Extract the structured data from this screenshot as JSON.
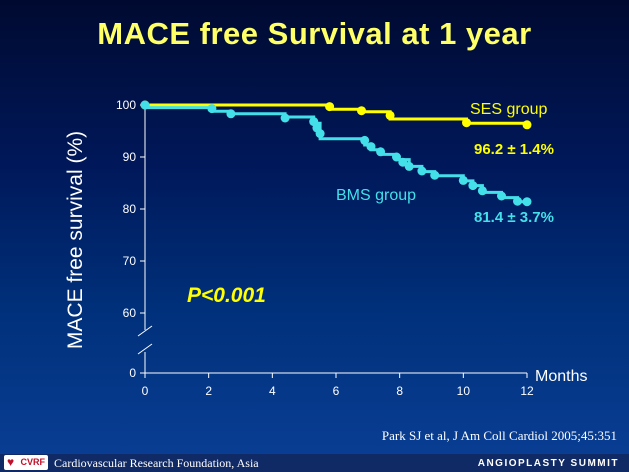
{
  "slide": {
    "title": "MACE free Survival at 1 year",
    "citation": "Park SJ et al, J Am Coll Cardiol 2005;45:351"
  },
  "footer": {
    "logo_text": "CVRF",
    "organization": "Cardiovascular Research Foundation, Asia",
    "event": "ANGIOPLASTY SUMMIT"
  },
  "colors": {
    "ses": "#ffff00",
    "bms": "#44e0ea",
    "annotation": "#ffff00",
    "axis": "#ffffff",
    "title": "#ffff66"
  },
  "chart_data": {
    "type": "line",
    "title": "MACE free Survival at 1 year",
    "xlabel": "Months",
    "ylabel": "MACE free survival (%)",
    "xlim": [
      0,
      12
    ],
    "ylim": [
      0,
      100
    ],
    "axis_break": true,
    "x_ticks": [
      0,
      2,
      4,
      6,
      8,
      10,
      12
    ],
    "y_ticks": [
      0,
      60,
      70,
      80,
      90,
      100
    ],
    "grid": false,
    "series": [
      {
        "name": "SES group",
        "color": "#ffff00",
        "final_label": "96.2 ± 1.4%",
        "steps": [
          [
            0,
            100
          ],
          [
            5.8,
            100
          ],
          [
            5.8,
            99.2
          ],
          [
            6.8,
            99.2
          ],
          [
            6.8,
            98.7
          ],
          [
            7.7,
            98.7
          ],
          [
            7.7,
            97.3
          ],
          [
            10.1,
            97.3
          ],
          [
            10.1,
            96.5
          ],
          [
            12,
            96.5
          ],
          [
            12,
            96.2
          ]
        ],
        "censor_points": [
          [
            0,
            100
          ],
          [
            5.8,
            99.7
          ],
          [
            6.8,
            98.9
          ],
          [
            7.7,
            98.0
          ],
          [
            10.1,
            96.6
          ],
          [
            12,
            96.2
          ]
        ]
      },
      {
        "name": "BMS group",
        "color": "#44e0ea",
        "final_label": "81.4 ± 3.7%",
        "steps": [
          [
            0,
            100
          ],
          [
            0.1,
            100
          ],
          [
            0.1,
            99.5
          ],
          [
            2.1,
            99.5
          ],
          [
            2.1,
            98.8
          ],
          [
            2.7,
            98.8
          ],
          [
            2.7,
            98.3
          ],
          [
            4.4,
            98.3
          ],
          [
            4.4,
            97.7
          ],
          [
            5.3,
            97.7
          ],
          [
            5.3,
            96.5
          ],
          [
            5.5,
            96.5
          ],
          [
            5.5,
            93.5
          ],
          [
            6.9,
            93.5
          ],
          [
            6.9,
            92.3
          ],
          [
            7.1,
            92.3
          ],
          [
            7.1,
            91.4
          ],
          [
            7.4,
            91.4
          ],
          [
            7.4,
            90.5
          ],
          [
            7.9,
            90.5
          ],
          [
            7.9,
            89.5
          ],
          [
            8.3,
            89.5
          ],
          [
            8.3,
            88.2
          ],
          [
            8.7,
            88.2
          ],
          [
            8.7,
            87.2
          ],
          [
            9.1,
            87.2
          ],
          [
            9.1,
            86.4
          ],
          [
            10.0,
            86.4
          ],
          [
            10.0,
            85.4
          ],
          [
            10.3,
            85.4
          ],
          [
            10.3,
            84.5
          ],
          [
            10.6,
            84.5
          ],
          [
            10.6,
            83.2
          ],
          [
            11.2,
            83.2
          ],
          [
            11.2,
            82.2
          ],
          [
            11.7,
            82.2
          ],
          [
            11.7,
            81.4
          ],
          [
            12,
            81.4
          ]
        ],
        "censor_points": [
          [
            0,
            100
          ],
          [
            2.1,
            99.3
          ],
          [
            2.7,
            98.3
          ],
          [
            4.4,
            97.5
          ],
          [
            5.3,
            96.8
          ],
          [
            5.4,
            95.6
          ],
          [
            5.5,
            94.5
          ],
          [
            6.9,
            93.2
          ],
          [
            7.1,
            92.0
          ],
          [
            7.4,
            91.0
          ],
          [
            7.9,
            90.0
          ],
          [
            8.1,
            89.0
          ],
          [
            8.3,
            88.2
          ],
          [
            8.7,
            87.3
          ],
          [
            9.1,
            86.5
          ],
          [
            10.0,
            85.5
          ],
          [
            10.3,
            84.5
          ],
          [
            10.6,
            83.5
          ],
          [
            11.2,
            82.5
          ],
          [
            11.7,
            81.5
          ],
          [
            12,
            81.4
          ]
        ]
      }
    ],
    "annotations": [
      {
        "text": "P<0.001"
      }
    ]
  }
}
